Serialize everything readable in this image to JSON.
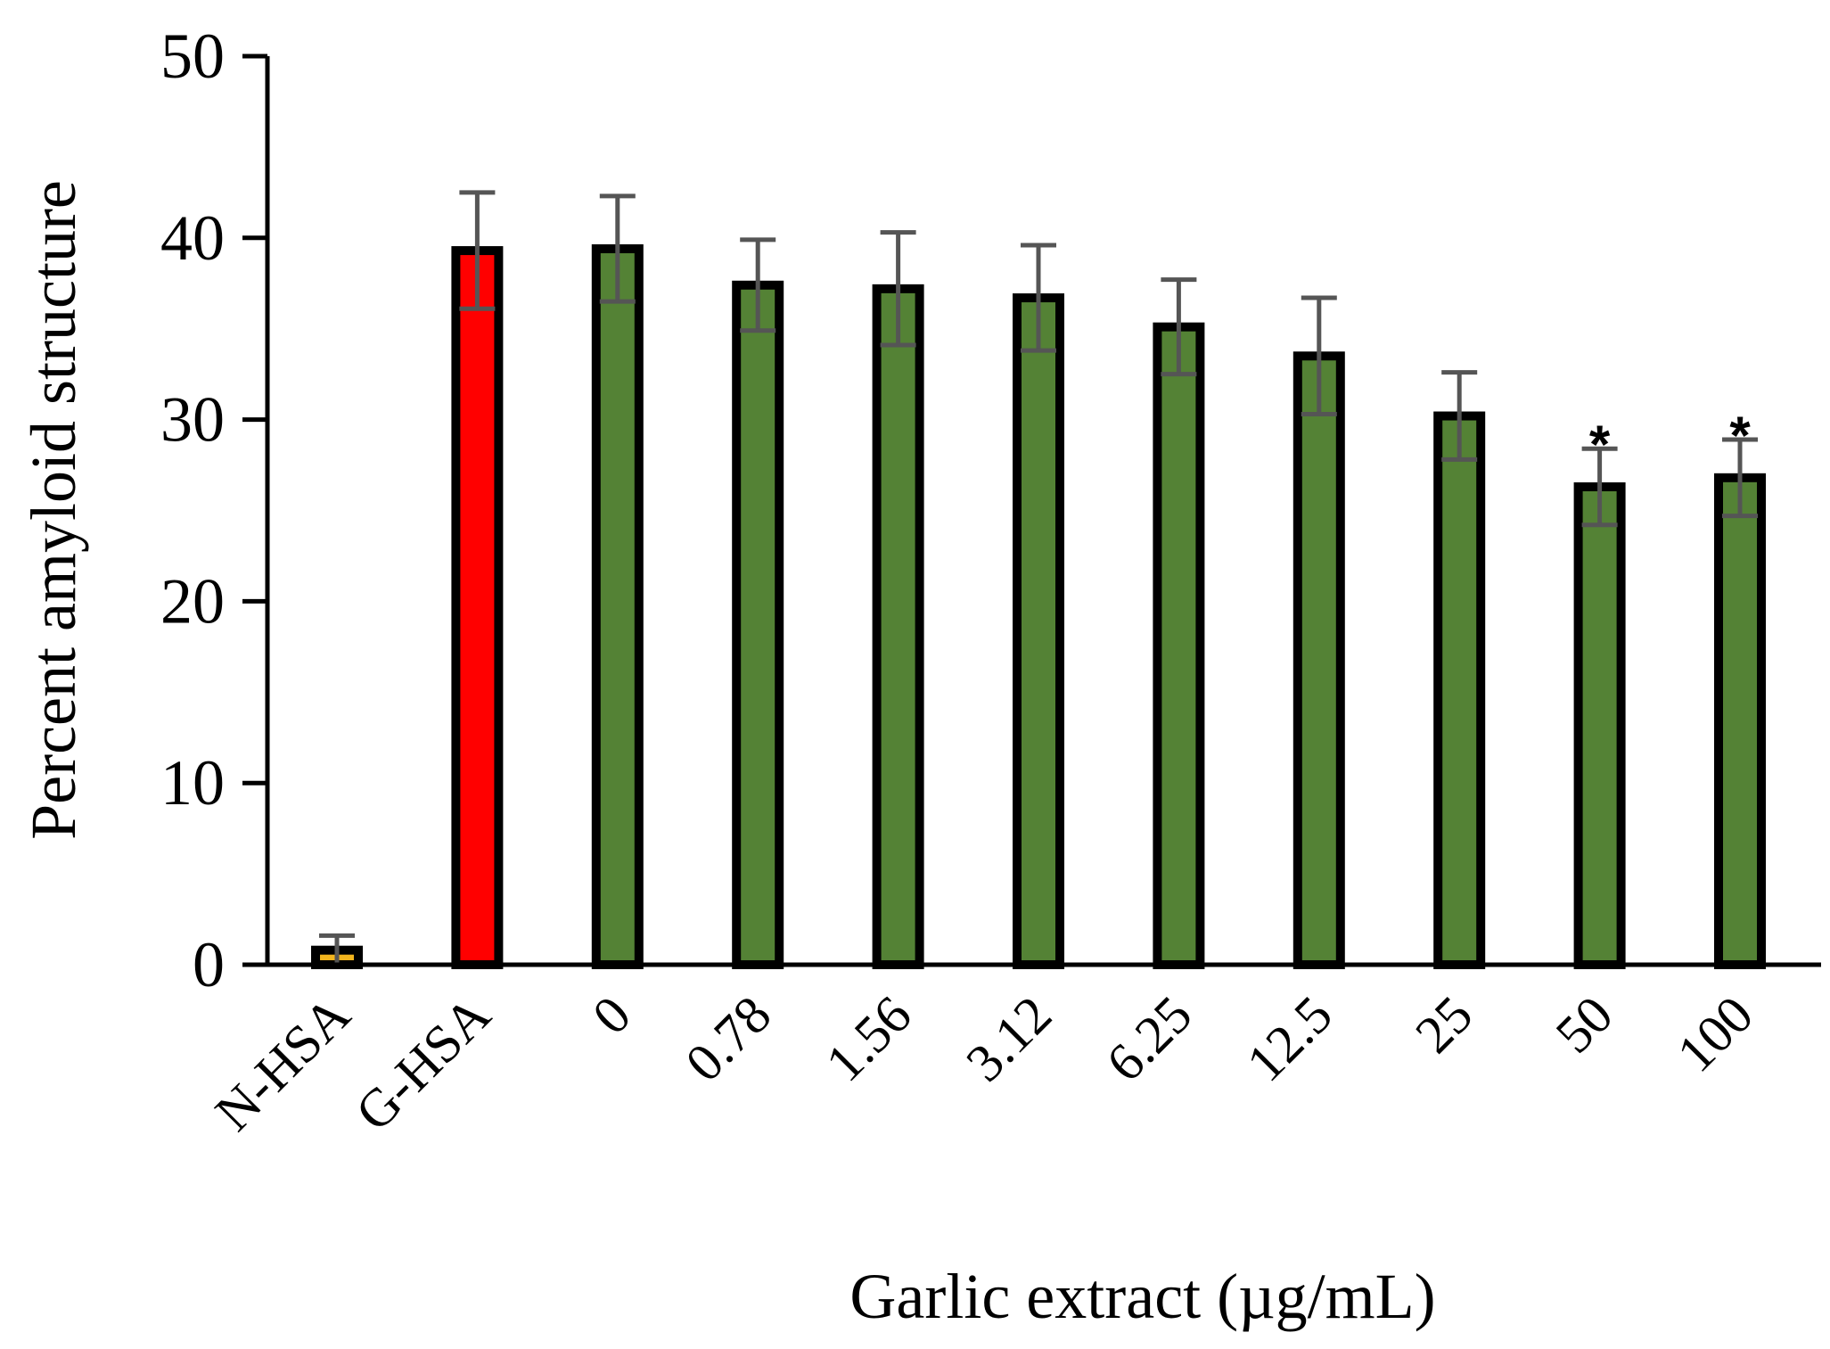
{
  "chart_data": {
    "type": "bar",
    "title": "",
    "xlabel": "Garlic extract (µg/mL)",
    "ylabel": "Percent amyloid structure",
    "ylim": [
      0,
      50
    ],
    "yticks": [
      0,
      10,
      20,
      30,
      40,
      50
    ],
    "categories": [
      "N-HSA",
      "G-HSA",
      "0",
      "0.78",
      "1.56",
      "3.12",
      "6.25",
      "12.5",
      "25",
      "50",
      "100"
    ],
    "values": [
      0.8,
      39.3,
      39.4,
      37.4,
      37.2,
      36.7,
      35.1,
      33.5,
      30.2,
      26.3,
      26.8
    ],
    "errors": [
      0.8,
      3.2,
      2.9,
      2.5,
      3.1,
      2.9,
      2.6,
      3.2,
      2.4,
      2.1,
      2.1
    ],
    "colors": [
      "#F2B51E",
      "#FF0000",
      "#548235",
      "#548235",
      "#548235",
      "#548235",
      "#548235",
      "#548235",
      "#548235",
      "#548235",
      "#548235"
    ],
    "annotations": [
      "",
      "",
      "",
      "",
      "",
      "",
      "",
      "",
      "",
      "*",
      "*"
    ],
    "grid": false,
    "legend": "none"
  }
}
